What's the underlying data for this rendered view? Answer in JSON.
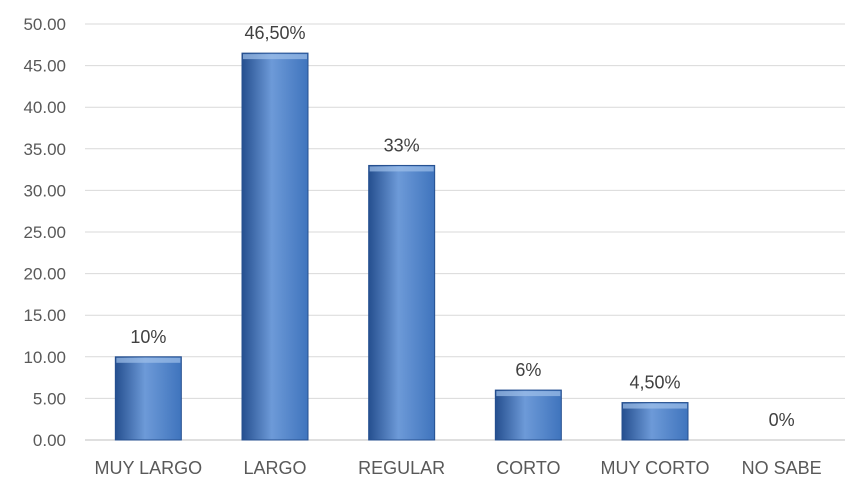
{
  "chart_data": {
    "type": "bar",
    "categories": [
      "MUY LARGO",
      "LARGO",
      "REGULAR",
      "CORTO",
      "MUY CORTO",
      "NO SABE"
    ],
    "values": [
      10,
      46.5,
      33,
      6,
      4.5,
      0
    ],
    "data_labels": [
      "10%",
      "46,50%",
      "33%",
      "6%",
      "4,50%",
      "0%"
    ],
    "yticks": [
      "0.00",
      "5.00",
      "10.00",
      "15.00",
      "20.00",
      "25.00",
      "30.00",
      "35.00",
      "40.00",
      "45.00",
      "50.00"
    ],
    "ylim": [
      0,
      50
    ],
    "grid": true,
    "bar_color": "#3f74bd",
    "bar_color_dark": "#254f8f",
    "bar_color_light": "#6d9ad8"
  }
}
